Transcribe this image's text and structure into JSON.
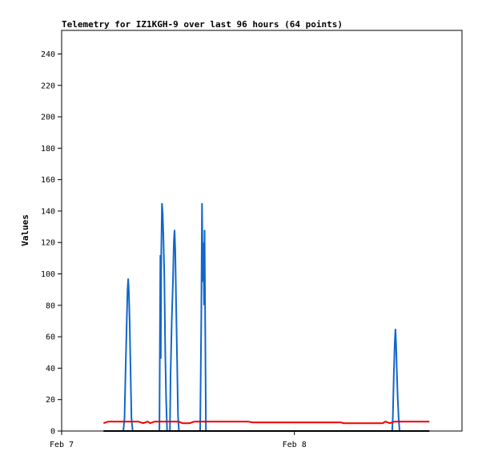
{
  "chart_data": {
    "type": "line",
    "title": "Telemetry for IZ1KGH-9 over last 96 hours (64 points)",
    "ylabel": "Values",
    "xlabel": "",
    "ylim": [
      0,
      255
    ],
    "xlim": [
      0,
      1.72
    ],
    "y_ticks": [
      0,
      20,
      40,
      60,
      80,
      100,
      120,
      140,
      160,
      180,
      200,
      220,
      240
    ],
    "x_ticks": [
      {
        "label": "Feb 7",
        "x": 0
      },
      {
        "label": "Feb 8",
        "x": 1
      }
    ],
    "x_unit": "days since Feb 7 00:00",
    "grid": false,
    "legend": "none",
    "colors": {
      "blue": "#1166cc",
      "red": "#ee0000",
      "black": "#000000"
    },
    "series": [
      {
        "color": "#1166cc",
        "points": [
          [
            0.18,
            0
          ],
          [
            0.265,
            0
          ],
          [
            0.27,
            8
          ],
          [
            0.275,
            40
          ],
          [
            0.28,
            72
          ],
          [
            0.283,
            90
          ],
          [
            0.286,
            97
          ],
          [
            0.289,
            88
          ],
          [
            0.292,
            70
          ],
          [
            0.296,
            40
          ],
          [
            0.3,
            8
          ],
          [
            0.305,
            0
          ],
          [
            0.42,
            0
          ],
          [
            0.422,
            57
          ],
          [
            0.424,
            112
          ],
          [
            0.426,
            46
          ],
          [
            0.428,
            113
          ],
          [
            0.431,
            145
          ],
          [
            0.434,
            138
          ],
          [
            0.437,
            125
          ],
          [
            0.441,
            100
          ],
          [
            0.445,
            50
          ],
          [
            0.449,
            20
          ],
          [
            0.453,
            0
          ],
          [
            0.465,
            0
          ],
          [
            0.468,
            35
          ],
          [
            0.473,
            70
          ],
          [
            0.478,
            95
          ],
          [
            0.482,
            120
          ],
          [
            0.485,
            128
          ],
          [
            0.488,
            115
          ],
          [
            0.492,
            80
          ],
          [
            0.496,
            45
          ],
          [
            0.5,
            10
          ],
          [
            0.504,
            0
          ],
          [
            0.595,
            0
          ],
          [
            0.6,
            72
          ],
          [
            0.603,
            145
          ],
          [
            0.606,
            95
          ],
          [
            0.609,
            120
          ],
          [
            0.612,
            80
          ],
          [
            0.614,
            128
          ],
          [
            0.617,
            60
          ],
          [
            0.62,
            0
          ],
          [
            1.42,
            0
          ],
          [
            1.423,
            10
          ],
          [
            1.427,
            35
          ],
          [
            1.431,
            56
          ],
          [
            1.434,
            65
          ],
          [
            1.437,
            55
          ],
          [
            1.44,
            38
          ],
          [
            1.444,
            20
          ],
          [
            1.448,
            8
          ],
          [
            1.452,
            0
          ],
          [
            1.46,
            0
          ]
        ]
      },
      {
        "color": "#ee0000",
        "points": [
          [
            0.18,
            5
          ],
          [
            0.2,
            6
          ],
          [
            0.25,
            6
          ],
          [
            0.3,
            6
          ],
          [
            0.33,
            6
          ],
          [
            0.35,
            5
          ],
          [
            0.37,
            6
          ],
          [
            0.38,
            5
          ],
          [
            0.4,
            6
          ],
          [
            0.45,
            6
          ],
          [
            0.5,
            6
          ],
          [
            0.52,
            5
          ],
          [
            0.55,
            5
          ],
          [
            0.57,
            6
          ],
          [
            0.6,
            6
          ],
          [
            0.7,
            6
          ],
          [
            0.8,
            6
          ],
          [
            0.82,
            5.5
          ],
          [
            0.9,
            5.5
          ],
          [
            1.0,
            5.5
          ],
          [
            1.1,
            5.5
          ],
          [
            1.2,
            5.5
          ],
          [
            1.21,
            5
          ],
          [
            1.3,
            5
          ],
          [
            1.38,
            5
          ],
          [
            1.39,
            6
          ],
          [
            1.41,
            5
          ],
          [
            1.43,
            6
          ],
          [
            1.47,
            6
          ],
          [
            1.5,
            6
          ],
          [
            1.58,
            6
          ]
        ]
      },
      {
        "color": "#000000",
        "points": [
          [
            0.18,
            0
          ],
          [
            1.58,
            0
          ]
        ]
      }
    ]
  }
}
